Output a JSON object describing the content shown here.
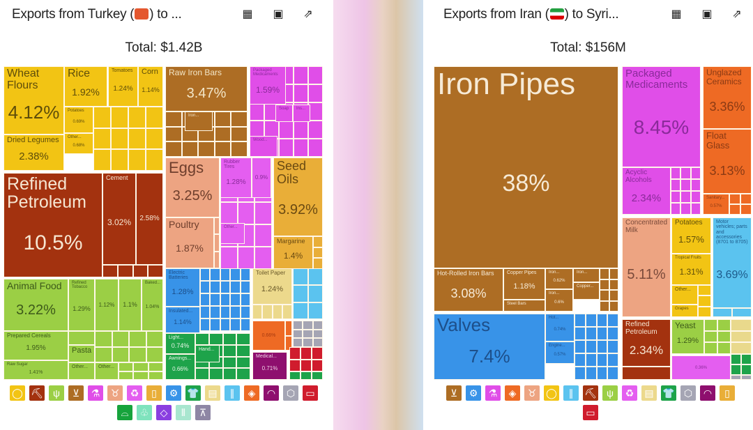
{
  "left": {
    "title": "Exports from Turkey (",
    "title_end": ") to ...",
    "flag": "turkey-flag",
    "total": "Total: $1.42B",
    "toolbar": [
      "table-icon",
      "image-icon",
      "external-link-icon"
    ],
    "tiles": [
      {
        "name": "Wheat Flours",
        "pct": "4.12%",
        "color": "#f2c414"
      },
      {
        "name": "Dried Legumes",
        "pct": "2.38%",
        "color": "#f2c414"
      },
      {
        "name": "Rice",
        "pct": "1.92%",
        "color": "#f2c414"
      },
      {
        "name": "Tomatoes",
        "pct": "1.24%",
        "color": "#f2c414"
      },
      {
        "name": "Corn",
        "pct": "1.14%",
        "color": "#f2c414"
      },
      {
        "name": "Potatoes",
        "pct": "0.69%",
        "color": "#f2c414"
      },
      {
        "name": "Other...",
        "pct": "0.68%",
        "color": "#f2c414"
      },
      {
        "name": "Refined Petroleum",
        "pct": "10.5%",
        "color": "#a3320f"
      },
      {
        "name": "Cement",
        "pct": "3.02%",
        "color": "#a3320f"
      },
      {
        "name": "",
        "pct": "2.58%",
        "color": "#a3320f"
      },
      {
        "name": "Raw Iron Bars",
        "pct": "3.47%",
        "color": "#ad6d24"
      },
      {
        "name": "Iron...",
        "pct": "",
        "color": "#ad6d24"
      },
      {
        "name": "Packaged Medicaments",
        "pct": "1.59%",
        "color": "#e04ee8"
      },
      {
        "name": "Soap",
        "pct": "",
        "color": "#e04ee8"
      },
      {
        "name": "Ins...",
        "pct": "",
        "color": "#e04ee8"
      },
      {
        "name": "Wood...",
        "pct": "",
        "color": "#e04ee8"
      },
      {
        "name": "Eggs",
        "pct": "3.25%",
        "color": "#eda482"
      },
      {
        "name": "Poultry",
        "pct": "1.87%",
        "color": "#eda482"
      },
      {
        "name": "Rubber Tires",
        "pct": "1.28%",
        "color": "#e45ef0"
      },
      {
        "name": "",
        "pct": "0.9%",
        "color": "#e45ef0"
      },
      {
        "name": "Other...",
        "pct": "",
        "color": "#e45ef0"
      },
      {
        "name": "Seed Oils",
        "pct": "3.92%",
        "color": "#e9ae38"
      },
      {
        "name": "Margarine",
        "pct": "1.4%",
        "color": "#e9ae38"
      },
      {
        "name": "Electric Batteries",
        "pct": "1.28%",
        "color": "#3893e8"
      },
      {
        "name": "Insulated...",
        "pct": "1.14%",
        "color": "#3893e8"
      },
      {
        "name": "Light...",
        "pct": "0.74%",
        "color": "#1ea34a"
      },
      {
        "name": "Awnings...",
        "pct": "0.66%",
        "color": "#1ea34a"
      },
      {
        "name": "Hand...",
        "pct": "",
        "color": "#1ea34a"
      },
      {
        "name": "Toilet Paper",
        "pct": "1.24%",
        "color": "#ecd98c"
      },
      {
        "name": "",
        "pct": "0.66%",
        "color": "#ee6a24"
      },
      {
        "name": "Medical...",
        "pct": "0.71%",
        "color": "#8e0f6e"
      },
      {
        "name": "Animal Food",
        "pct": "3.22%",
        "color": "#9bcf45"
      },
      {
        "name": "Prepared Cereals",
        "pct": "1.95%",
        "color": "#9bcf45"
      },
      {
        "name": "Raw Sugar",
        "pct": "1.41%",
        "color": "#9bcf45"
      },
      {
        "name": "Refined Tobacco",
        "pct": "1.29%",
        "color": "#9bcf45"
      },
      {
        "name": "",
        "pct": "1.12%",
        "color": "#9bcf45"
      },
      {
        "name": "",
        "pct": "1.1%",
        "color": "#9bcf45"
      },
      {
        "name": "Baked...",
        "pct": "1.04%",
        "color": "#9bcf45"
      },
      {
        "name": "Pasta",
        "pct": "",
        "color": "#9bcf45"
      },
      {
        "name": "Other...",
        "pct": "",
        "color": "#9bcf45"
      },
      {
        "name": "Other...",
        "pct": "",
        "color": "#9bcf45"
      }
    ],
    "legend": [
      {
        "icon": "vegetable-products-icon",
        "color": "#f2c414"
      },
      {
        "icon": "mineral-products-icon",
        "color": "#a3320f"
      },
      {
        "icon": "foodstuffs-icon",
        "color": "#9bcf45"
      },
      {
        "icon": "metals-icon",
        "color": "#ad6d24"
      },
      {
        "icon": "chemical-products-icon",
        "color": "#e04ee8"
      },
      {
        "icon": "animal-products-icon",
        "color": "#eda482"
      },
      {
        "icon": "plastics-rubbers-icon",
        "color": "#e45ef0"
      },
      {
        "icon": "animal-vegetable-fats-icon",
        "color": "#e9ae38"
      },
      {
        "icon": "machines-icon",
        "color": "#3893e8"
      },
      {
        "icon": "textiles-icon",
        "color": "#1ea34a"
      },
      {
        "icon": "paper-goods-icon",
        "color": "#ecd98c"
      },
      {
        "icon": "transportation-icon",
        "color": "#5bc3ef"
      },
      {
        "icon": "stone-and-glass-icon",
        "color": "#ee6a24"
      },
      {
        "icon": "instruments-icon",
        "color": "#8e0f6e"
      },
      {
        "icon": "wood-products-icon",
        "color": "#a5a5b4"
      },
      {
        "icon": "miscellaneous-icon",
        "color": "#d01c2d"
      },
      {
        "icon": "footwear-headwear-icon",
        "color": "#17a33c"
      },
      {
        "icon": "animal-hides-icon",
        "color": "#7fe3bd"
      },
      {
        "icon": "precious-metals-icon",
        "color": "#8a3fe0"
      },
      {
        "icon": "weapons-icon",
        "color": "#a8e6cf"
      },
      {
        "icon": "arts-and-antiques-icon",
        "color": "#8e86a4"
      }
    ]
  },
  "right": {
    "title": "Exports from Iran (",
    "title_end": ") to Syri...",
    "flag": "iran-flag",
    "total": "Total: $156M",
    "toolbar": [
      "table-icon",
      "image-icon",
      "external-link-icon"
    ],
    "tiles": [
      {
        "name": "Iron Pipes",
        "pct": "38%",
        "color": "#ad6d24"
      },
      {
        "name": "Hot-Rolled Iron Bars",
        "pct": "3.08%",
        "color": "#ad6d24"
      },
      {
        "name": "Copper Pipes",
        "pct": "1.18%",
        "color": "#ad6d24"
      },
      {
        "name": "Steel Bars",
        "pct": "",
        "color": "#ad6d24"
      },
      {
        "name": "Iron...",
        "pct": "0.62%",
        "color": "#ad6d24"
      },
      {
        "name": "Iron...",
        "pct": "0.6%",
        "color": "#ad6d24"
      },
      {
        "name": "Iron...",
        "pct": "",
        "color": "#ad6d24"
      },
      {
        "name": "Copper...",
        "pct": "",
        "color": "#ad6d24"
      },
      {
        "name": "Valves",
        "pct": "7.4%",
        "color": "#3893e8"
      },
      {
        "name": "Hot...",
        "pct": "0.74%",
        "color": "#3893e8"
      },
      {
        "name": "Engine...",
        "pct": "0.57%",
        "color": "#3893e8"
      },
      {
        "name": "Packaged Medicaments",
        "pct": "8.45%",
        "color": "#e04ee8"
      },
      {
        "name": "Acyclic Alcohols",
        "pct": "2.34%",
        "color": "#e04ee8"
      },
      {
        "name": "Unglazed Ceramics",
        "pct": "3.36%",
        "color": "#ee6a24"
      },
      {
        "name": "Float Glass",
        "pct": "3.13%",
        "color": "#ee6a24"
      },
      {
        "name": "Sanitary...",
        "pct": "0.57%",
        "color": "#ee6a24"
      },
      {
        "name": "Concentrated Milk",
        "pct": "5.11%",
        "color": "#eda482"
      },
      {
        "name": "Potatoes",
        "pct": "1.57%",
        "color": "#f2c414"
      },
      {
        "name": "Tropical Fruits",
        "pct": "1.31%",
        "color": "#f2c414"
      },
      {
        "name": "Other...",
        "pct": "",
        "color": "#f2c414"
      },
      {
        "name": "Grapes",
        "pct": "",
        "color": "#f2c414"
      },
      {
        "name": "Motor vehicles; parts and accessories (8701 to 8705)",
        "pct": "3.69%",
        "color": "#5bc3ef"
      },
      {
        "name": "Refined Petroleum",
        "pct": "2.34%",
        "color": "#a3320f"
      },
      {
        "name": "Yeast",
        "pct": "1.29%",
        "color": "#9bcf45"
      },
      {
        "name": "",
        "pct": "0.36%",
        "color": "#e45ef0"
      }
    ],
    "legend": [
      {
        "icon": "metals-icon",
        "color": "#ad6d24"
      },
      {
        "icon": "machines-icon",
        "color": "#3893e8"
      },
      {
        "icon": "chemical-products-icon",
        "color": "#e04ee8"
      },
      {
        "icon": "stone-and-glass-icon",
        "color": "#ee6a24"
      },
      {
        "icon": "animal-products-icon",
        "color": "#eda482"
      },
      {
        "icon": "vegetable-products-icon",
        "color": "#f2c414"
      },
      {
        "icon": "transportation-icon",
        "color": "#5bc3ef"
      },
      {
        "icon": "mineral-products-icon",
        "color": "#a3320f"
      },
      {
        "icon": "foodstuffs-icon",
        "color": "#9bcf45"
      },
      {
        "icon": "plastics-rubbers-icon",
        "color": "#e45ef0"
      },
      {
        "icon": "paper-goods-icon",
        "color": "#ecd98c"
      },
      {
        "icon": "textiles-icon",
        "color": "#1ea34a"
      },
      {
        "icon": "wood-products-icon",
        "color": "#a5a5b4"
      },
      {
        "icon": "instruments-icon",
        "color": "#8e0f6e"
      },
      {
        "icon": "animal-vegetable-fats-icon",
        "color": "#e9ae38"
      },
      {
        "icon": "miscellaneous-icon",
        "color": "#d01c2d"
      }
    ]
  },
  "chart_data": [
    {
      "type": "treemap",
      "title": "Exports from Turkey to ...",
      "subtitle": "Total: $1.42B",
      "items": [
        [
          "Refined Petroleum",
          10.5
        ],
        [
          "Wheat Flours",
          4.12
        ],
        [
          "Seed Oils",
          3.92
        ],
        [
          "Raw Iron Bars",
          3.47
        ],
        [
          "Eggs",
          3.25
        ],
        [
          "Animal Food",
          3.22
        ],
        [
          "Cement",
          3.02
        ],
        [
          "",
          2.58
        ],
        [
          "Dried Legumes",
          2.38
        ],
        [
          "Prepared Cereals",
          1.95
        ],
        [
          "Rice",
          1.92
        ],
        [
          "Poultry",
          1.87
        ],
        [
          "Packaged Medicaments",
          1.59
        ],
        [
          "Raw Sugar",
          1.41
        ],
        [
          "Margarine",
          1.4
        ],
        [
          "Refined Tobacco",
          1.29
        ],
        [
          "Rubber Tires",
          1.28
        ],
        [
          "Electric Batteries",
          1.28
        ],
        [
          "Tomatoes",
          1.24
        ],
        [
          "Toilet Paper",
          1.24
        ],
        [
          "Corn",
          1.14
        ],
        [
          "Insulated...",
          1.14
        ],
        [
          "",
          1.12
        ],
        [
          "",
          1.1
        ],
        [
          "Baked...",
          1.04
        ],
        [
          "",
          0.9
        ],
        [
          "Light...",
          0.74
        ],
        [
          "Medical...",
          0.71
        ],
        [
          "Potatoes",
          0.69
        ],
        [
          "Other...",
          0.68
        ],
        [
          "Awnings...",
          0.66
        ],
        [
          "",
          0.66
        ]
      ]
    },
    {
      "type": "treemap",
      "title": "Exports from Iran to Syri...",
      "subtitle": "Total: $156M",
      "items": [
        [
          "Iron Pipes",
          38
        ],
        [
          "Packaged Medicaments",
          8.45
        ],
        [
          "Valves",
          7.4
        ],
        [
          "Concentrated Milk",
          5.11
        ],
        [
          "Motor vehicles; parts and accessories (8701 to 8705)",
          3.69
        ],
        [
          "Unglazed Ceramics",
          3.36
        ],
        [
          "Float Glass",
          3.13
        ],
        [
          "Hot-Rolled Iron Bars",
          3.08
        ],
        [
          "Acyclic Alcohols",
          2.34
        ],
        [
          "Refined Petroleum",
          2.34
        ],
        [
          "Potatoes",
          1.57
        ],
        [
          "Tropical Fruits",
          1.31
        ],
        [
          "Yeast",
          1.29
        ],
        [
          "Copper Pipes",
          1.18
        ],
        [
          "Hot...",
          0.74
        ],
        [
          "Iron...",
          0.62
        ],
        [
          "Iron...",
          0.6
        ],
        [
          "Engine...",
          0.57
        ],
        [
          "Sanitary...",
          0.57
        ],
        [
          "",
          0.36
        ]
      ]
    }
  ]
}
